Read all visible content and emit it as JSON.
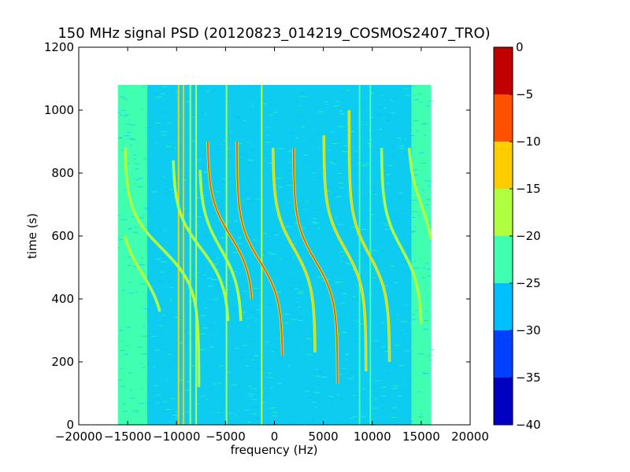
{
  "chart_data": {
    "type": "heatmap",
    "title": "150 MHz signal PSD (20120823_014219_COSMOS2407_TRO)",
    "xlabel": "frequency (Hz)",
    "ylabel": "time (s)",
    "xlim": [
      -20000,
      20000
    ],
    "ylim": [
      0,
      1200
    ],
    "x_ticks": [
      -20000,
      -15000,
      -10000,
      -5000,
      0,
      5000,
      10000,
      15000,
      20000
    ],
    "y_ticks": [
      0,
      200,
      400,
      600,
      800,
      1000,
      1200
    ],
    "data_extent": {
      "x": [
        -16000,
        16000
      ],
      "y": [
        0,
        1080
      ]
    },
    "background_level_dB": {
      "outer_band": -22,
      "center_band": -27
    },
    "traces": [
      {
        "center_x": -13500,
        "center_y": 480,
        "half_width_x": 2600,
        "y_top": 600,
        "y_bottom": 360,
        "level_dB": -18
      },
      {
        "center_x": -11500,
        "center_y": 560,
        "half_width_x": 4200,
        "y_top": 880,
        "y_bottom": 120,
        "level_dB": -17
      },
      {
        "center_x": -7500,
        "center_y": 560,
        "half_width_x": 3200,
        "y_top": 840,
        "y_bottom": 330,
        "level_dB": -16
      },
      {
        "center_x": -5500,
        "center_y": 560,
        "half_width_x": 2400,
        "y_top": 810,
        "y_bottom": 330,
        "level_dB": -15
      },
      {
        "center_x": -4500,
        "center_y": 600,
        "half_width_x": 2600,
        "y_top": 900,
        "y_bottom": 400,
        "level_dB": -8
      },
      {
        "center_x": -1500,
        "center_y": 520,
        "half_width_x": 2600,
        "y_top": 900,
        "y_bottom": 220,
        "level_dB": -8
      },
      {
        "center_x": 2000,
        "center_y": 560,
        "half_width_x": 2400,
        "y_top": 880,
        "y_bottom": 230,
        "level_dB": -10
      },
      {
        "center_x": 4200,
        "center_y": 520,
        "half_width_x": 2500,
        "y_top": 880,
        "y_bottom": 130,
        "level_dB": -8
      },
      {
        "center_x": 7200,
        "center_y": 560,
        "half_width_x": 2400,
        "y_top": 920,
        "y_bottom": 170,
        "level_dB": -10
      },
      {
        "center_x": 9700,
        "center_y": 540,
        "half_width_x": 2300,
        "y_top": 1000,
        "y_bottom": 200,
        "level_dB": -14
      },
      {
        "center_x": 13000,
        "center_y": 560,
        "half_width_x": 2300,
        "y_top": 880,
        "y_bottom": 320,
        "level_dB": -16
      },
      {
        "center_x": 15000,
        "center_y": 700,
        "half_width_x": 1500,
        "y_top": 880,
        "y_bottom": 590,
        "level_dB": -18
      }
    ],
    "vertical_lines": [
      {
        "x": -9800,
        "level_dB": -12
      },
      {
        "x": -9300,
        "level_dB": -14
      },
      {
        "x": -8600,
        "level_dB": -16
      },
      {
        "x": -8000,
        "level_dB": -17
      },
      {
        "x": -4900,
        "level_dB": -17
      },
      {
        "x": -1300,
        "level_dB": -18
      },
      {
        "x": 8700,
        "level_dB": -22
      },
      {
        "x": 9800,
        "level_dB": -22
      }
    ],
    "colorbar": {
      "min": -40,
      "max": 0,
      "ticks": [
        0,
        -5,
        -10,
        -15,
        -20,
        -25,
        -30,
        -35,
        -40
      ],
      "levels": [
        {
          "from": -40,
          "to": -35,
          "color": "#0000c0"
        },
        {
          "from": -35,
          "to": -30,
          "color": "#0040ff"
        },
        {
          "from": -30,
          "to": -25,
          "color": "#00bfff"
        },
        {
          "from": -25,
          "to": -20,
          "color": "#40ffb0"
        },
        {
          "from": -20,
          "to": -15,
          "color": "#b0ff40"
        },
        {
          "from": -15,
          "to": -10,
          "color": "#ffcc00"
        },
        {
          "from": -10,
          "to": -5,
          "color": "#ff5000"
        },
        {
          "from": -5,
          "to": 0,
          "color": "#c00000"
        }
      ]
    }
  }
}
